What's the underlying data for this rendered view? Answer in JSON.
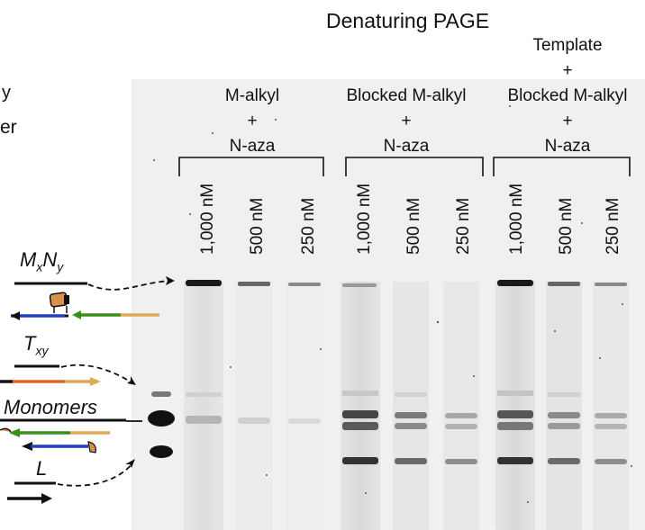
{
  "title": "Denaturing PAGE",
  "left_cut_text": {
    "line1": "y",
    "line2": "er"
  },
  "groups": [
    {
      "lines": [
        "M-alkyl",
        "+",
        "N-aza"
      ]
    },
    {
      "lines": [
        "Blocked M-alkyl",
        "+",
        "N-aza"
      ]
    },
    {
      "lines": [
        "Template",
        "+",
        "Blocked M-alkyl",
        "+",
        "N-aza"
      ]
    }
  ],
  "lanes": [
    "1,000 nM",
    "500 nM",
    "250 nM",
    "1,000 nM",
    "500 nM",
    "250 nM",
    "1,000 nM",
    "500 nM",
    "250 nM"
  ],
  "species": {
    "mxny": {
      "base": "M",
      "sub1": "x",
      "mid": "N",
      "sub2": "y"
    },
    "txy": {
      "base": "T",
      "sub": "xy"
    },
    "monomers": "Monomers",
    "l": "L"
  },
  "colors": {
    "blue": "#1f3fbf",
    "green": "#3a8f1c",
    "tan": "#e0a85a",
    "orange": "#d9692d",
    "black": "#111111",
    "gel_bg": "#f2f2f2"
  }
}
